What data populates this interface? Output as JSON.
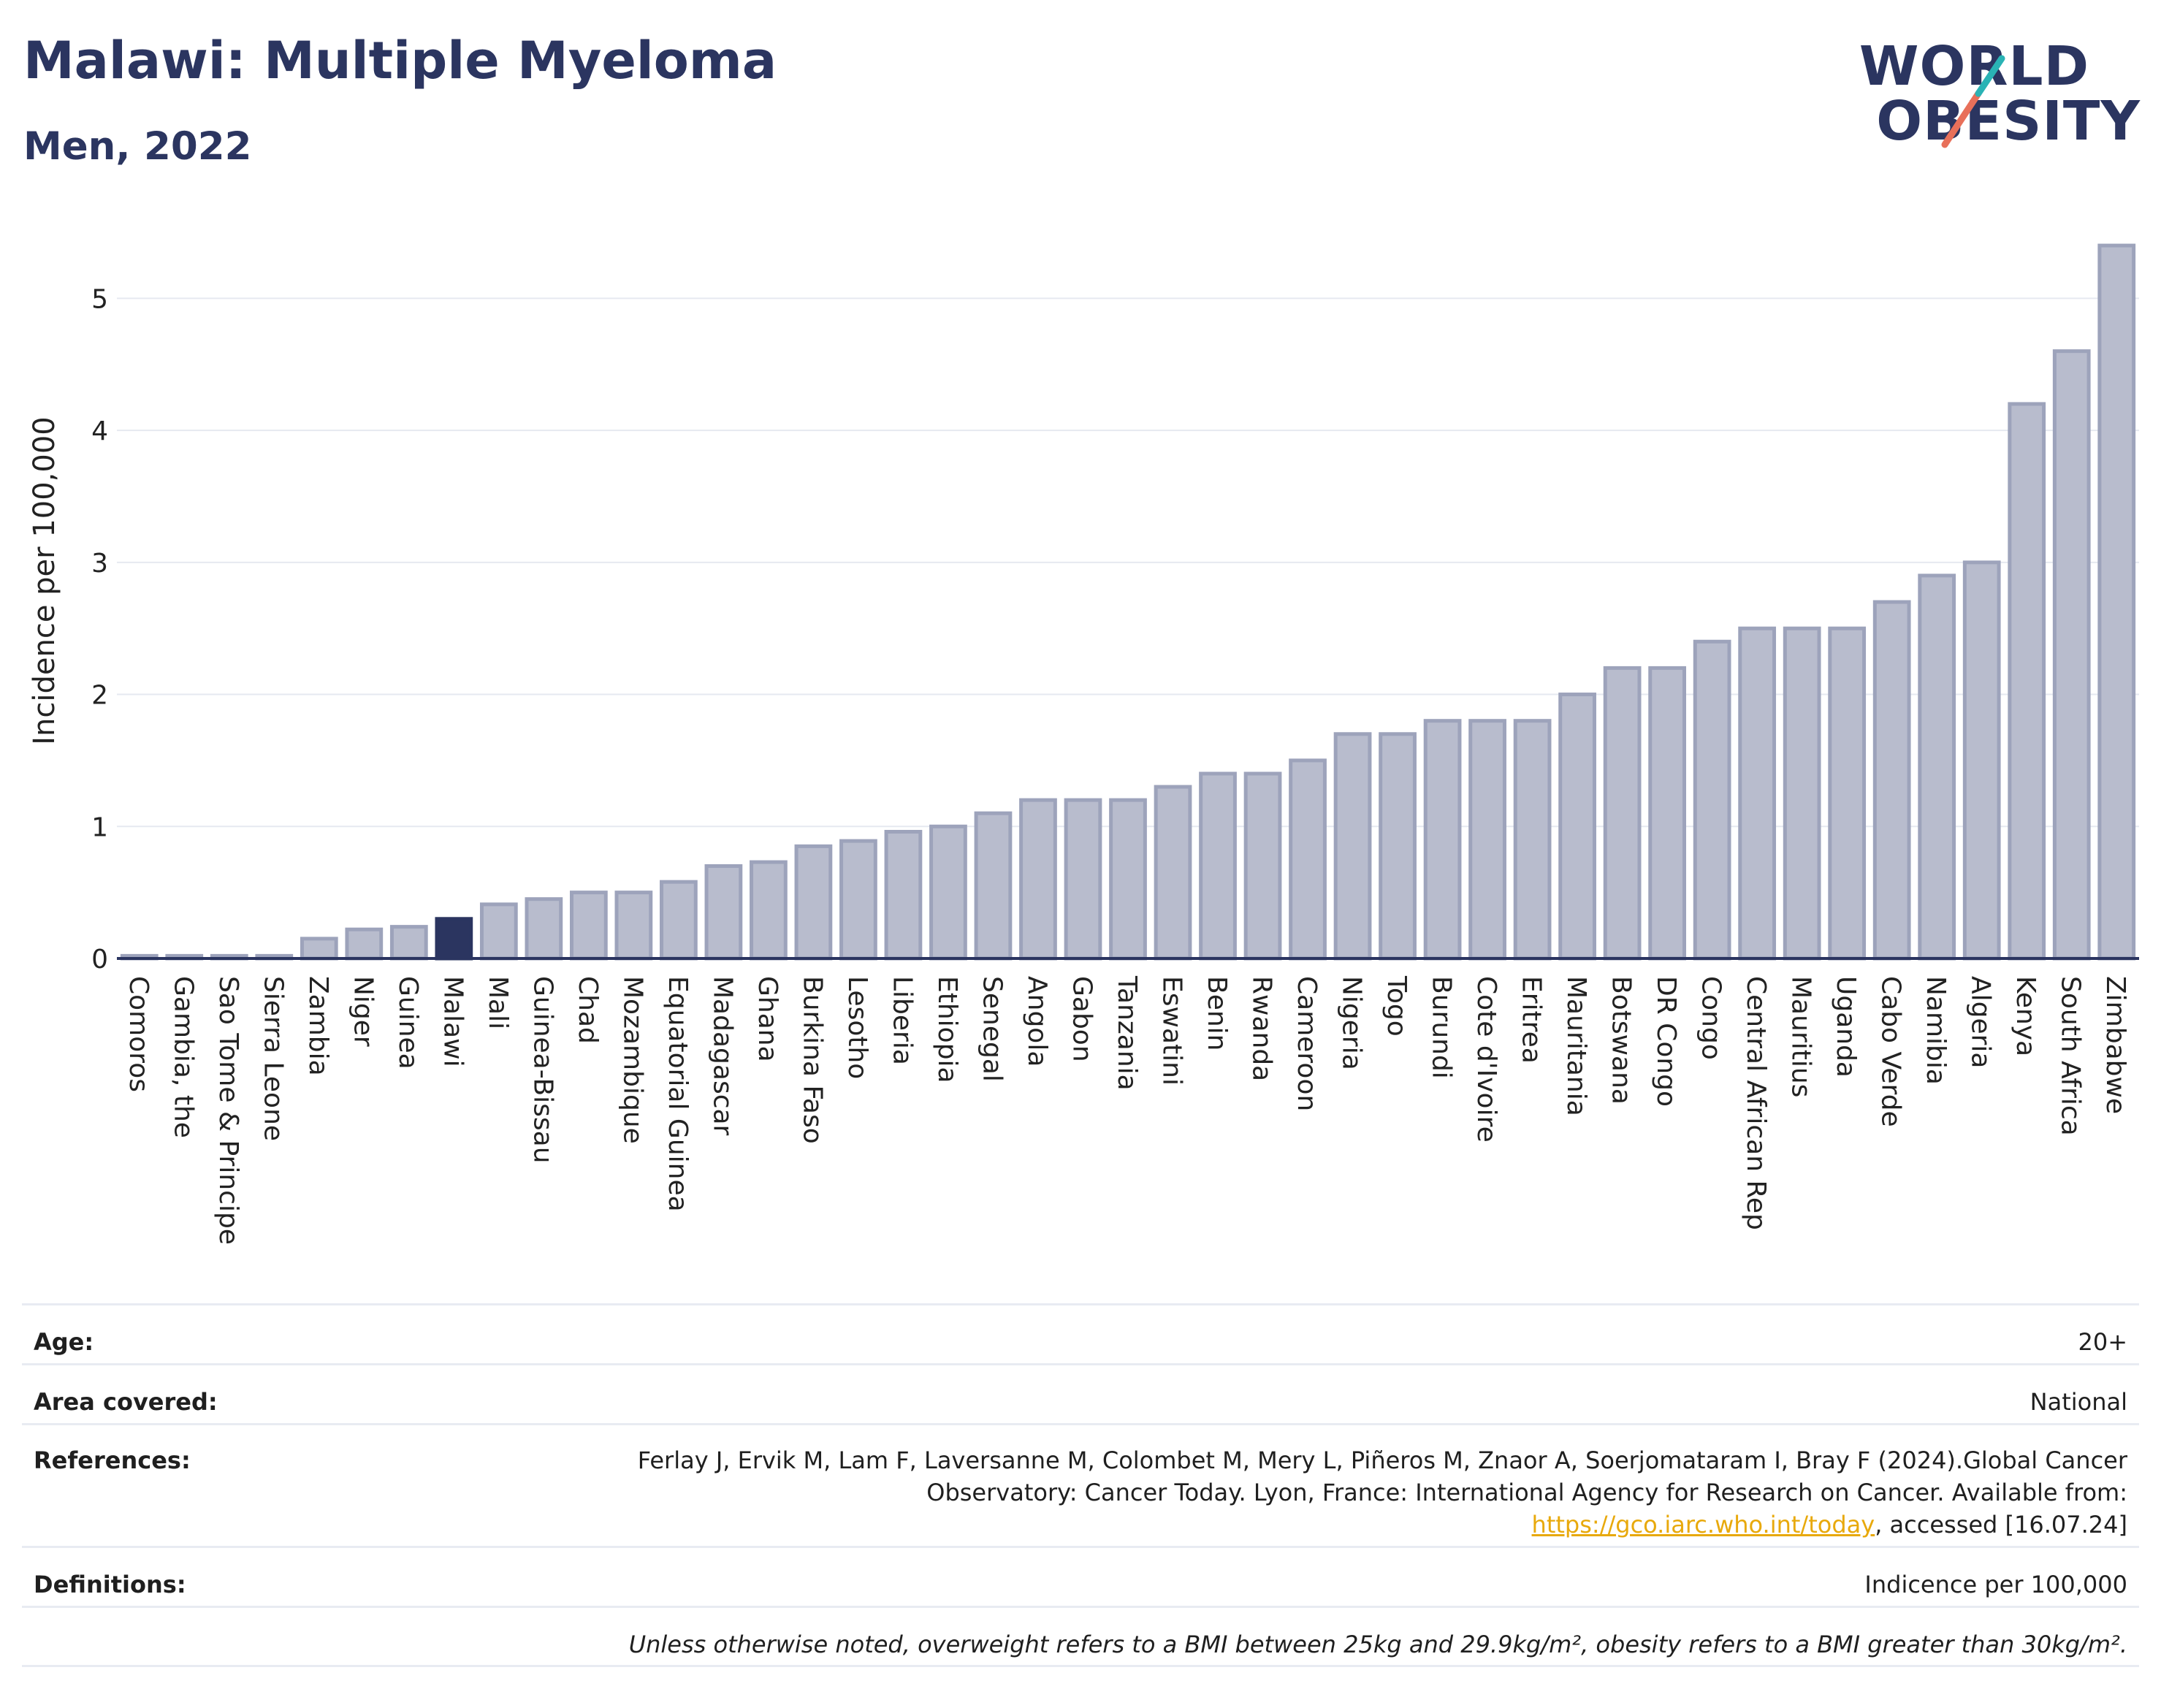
{
  "header": {
    "title": "Malawi: Multiple Myeloma",
    "subtitle": "Men, 2022"
  },
  "logo": {
    "line1": "WORLD",
    "line2": "OBESITY",
    "colors": {
      "text": "#2b3560",
      "slash_teal": "#2ab3b5",
      "slash_coral": "#e8705a"
    }
  },
  "chart_data": {
    "type": "bar",
    "title": "",
    "xlabel": "",
    "ylabel": "Incidence per 100,000",
    "ylim": [
      0,
      5.5
    ],
    "yticks": [
      0,
      1,
      2,
      3,
      4,
      5
    ],
    "grid": true,
    "highlight": "Malawi",
    "colors": {
      "bar": "#b8bccd",
      "bar_edge": "#9da3bb",
      "highlight": "#2b3560"
    },
    "categories": [
      "Comoros",
      "Gambia, the",
      "Sao Tome & Principe",
      "Sierra Leone",
      "Zambia",
      "Niger",
      "Guinea",
      "Malawi",
      "Mali",
      "Guinea-Bissau",
      "Chad",
      "Mozambique",
      "Equatorial Guinea",
      "Madagascar",
      "Ghana",
      "Burkina Faso",
      "Lesotho",
      "Liberia",
      "Ethiopia",
      "Senegal",
      "Angola",
      "Gabon",
      "Tanzania",
      "Eswatini",
      "Benin",
      "Rwanda",
      "Cameroon",
      "Nigeria",
      "Togo",
      "Burundi",
      "Cote d'Ivoire",
      "Eritrea",
      "Mauritania",
      "Botswana",
      "DR Congo",
      "Congo",
      "Central African Rep",
      "Mauritius",
      "Uganda",
      "Cabo Verde",
      "Namibia",
      "Algeria",
      "Kenya",
      "South Africa",
      "Zimbabwe"
    ],
    "values": [
      0.02,
      0.02,
      0.02,
      0.02,
      0.15,
      0.22,
      0.24,
      0.3,
      0.41,
      0.45,
      0.5,
      0.5,
      0.58,
      0.7,
      0.73,
      0.85,
      0.89,
      0.96,
      1.0,
      1.1,
      1.2,
      1.2,
      1.2,
      1.3,
      1.4,
      1.4,
      1.5,
      1.7,
      1.7,
      1.8,
      1.8,
      1.8,
      2.0,
      2.2,
      2.2,
      2.4,
      2.5,
      2.5,
      2.5,
      2.7,
      2.9,
      3.0,
      4.2,
      4.6,
      5.4
    ]
  },
  "info": {
    "age_label": "Age:",
    "age_value": "20+",
    "area_label": "Area covered:",
    "area_value": "National",
    "ref_label": "References:",
    "ref_text_1": "Ferlay J, Ervik M, Lam F, Laversanne M, Colombet M, Mery L, Piñeros M, Znaor A, Soerjomataram I, Bray F (2024).Global Cancer Observatory: Cancer Today. Lyon, France: International Agency for Research on Cancer. Available from: ",
    "ref_link": "https://gco.iarc.who.int/today",
    "ref_text_2": ", accessed [16.07.24]",
    "def_label": "Definitions:",
    "def_value": "Indicence per 100,000",
    "note": "Unless otherwise noted, overweight refers to a BMI between 25kg and 29.9kg/m², obesity refers to a BMI greater than 30kg/m²."
  }
}
